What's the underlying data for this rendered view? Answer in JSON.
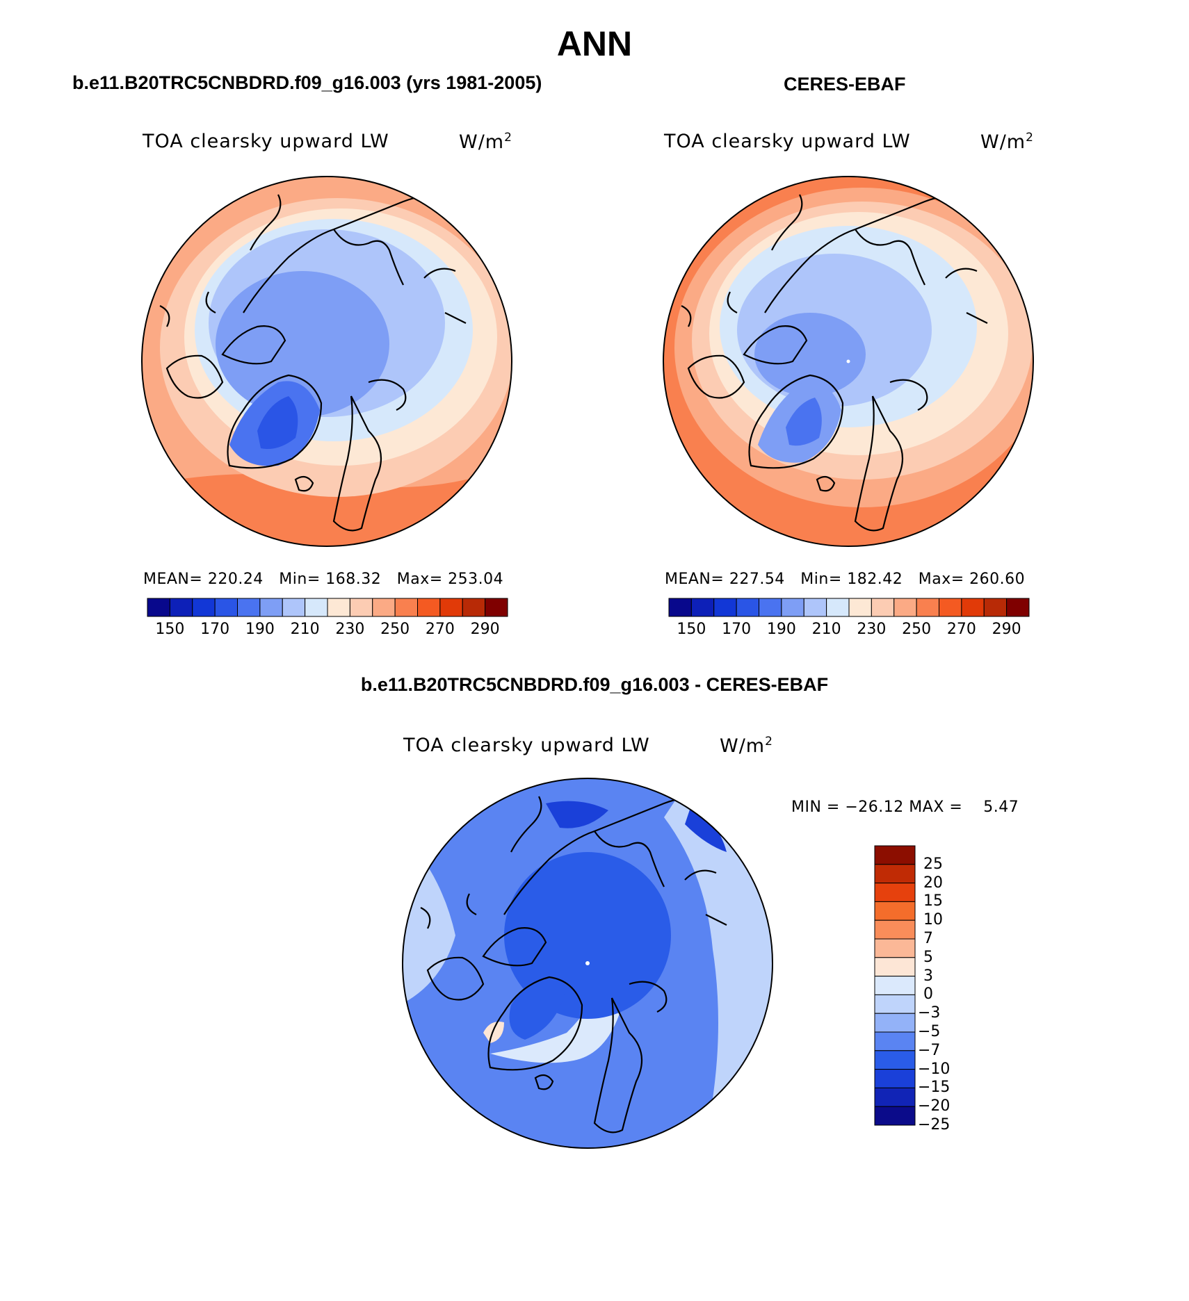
{
  "figure": {
    "title": "ANN"
  },
  "colors": {
    "abs_scale": [
      "#08088c",
      "#0d20b8",
      "#1237d6",
      "#2a55e6",
      "#4a73f0",
      "#7e9ef5",
      "#aec5fa",
      "#d6e8fb",
      "#fde8d5",
      "#fcccb3",
      "#fbaa85",
      "#f9804f",
      "#f45a22",
      "#e13a08",
      "#b82a06",
      "#7f0000"
    ],
    "diff_scale": [
      "#0b0b8a",
      "#1124b6",
      "#1a40d9",
      "#2a5ce8",
      "#5a84f2",
      "#93b2f8",
      "#bfd4fb",
      "#dbe9fc",
      "#fde6d6",
      "#fbb897",
      "#f98d5a",
      "#f46d2b",
      "#e6410d",
      "#c02b05",
      "#8c0e00"
    ]
  },
  "chart_data": [
    {
      "type": "heatmap",
      "projection": "north-polar-stereographic",
      "panel_title": "b.e11.B20TRC5CNBDRD.f09_g16.003 (yrs 1981-2005)",
      "variable_label": "TOA clearsky upward LW",
      "units": "W/m",
      "units_sup": "2",
      "stats": {
        "mean": "220.24",
        "min": "168.32",
        "max": "253.04"
      },
      "stats_labels": {
        "mean": "MEAN=",
        "min": "Min=",
        "max": "Max="
      },
      "colorbar_ticks": [
        "150",
        "170",
        "190",
        "210",
        "230",
        "250",
        "270",
        "290"
      ],
      "field": [
        {
          "level": 1,
          "value": 175
        },
        {
          "level": 2,
          "value": 185
        },
        {
          "level": 3,
          "value": 195
        },
        {
          "level": 4,
          "value": 205
        },
        {
          "level": 5,
          "value": 215
        },
        {
          "level": 6,
          "value": 225
        },
        {
          "level": 7,
          "value": 235
        },
        {
          "level": 8,
          "value": 245
        }
      ]
    },
    {
      "type": "heatmap",
      "projection": "north-polar-stereographic",
      "panel_title": "CERES-EBAF",
      "variable_label": "TOA clearsky upward LW",
      "units": "W/m",
      "units_sup": "2",
      "stats": {
        "mean": "227.54",
        "min": "182.42",
        "max": "260.60"
      },
      "stats_labels": {
        "mean": "MEAN=",
        "min": "Min=",
        "max": "Max="
      },
      "colorbar_ticks": [
        "150",
        "170",
        "190",
        "210",
        "230",
        "250",
        "270",
        "290"
      ],
      "field": [
        {
          "level": 1,
          "value": 190
        },
        {
          "level": 2,
          "value": 200
        },
        {
          "level": 3,
          "value": 210
        },
        {
          "level": 4,
          "value": 220
        },
        {
          "level": 5,
          "value": 230
        },
        {
          "level": 6,
          "value": 240
        },
        {
          "level": 7,
          "value": 250
        },
        {
          "level": 8,
          "value": 255
        }
      ]
    },
    {
      "type": "heatmap",
      "projection": "north-polar-stereographic",
      "panel_title": "b.e11.B20TRC5CNBDRD.f09_g16.003 - CERES-EBAF",
      "variable_label": "TOA clearsky upward LW",
      "units": "W/m",
      "units_sup": "2",
      "minmax_text": {
        "min_label": "MIN =",
        "min": "−26.12",
        "max_label": "MAX =",
        "max": "5.47"
      },
      "colorbar_ticks": [
        "25",
        "20",
        "15",
        "10",
        "7",
        "5",
        "3",
        "0",
        "−3",
        "−5",
        "−7",
        "−10",
        "−15",
        "−20",
        "−25"
      ]
    }
  ]
}
